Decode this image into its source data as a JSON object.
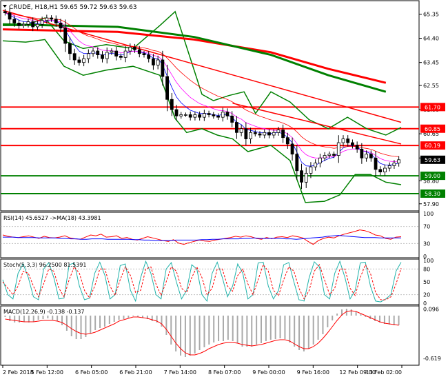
{
  "window": {
    "symbol_title": "CRUDE, H18,H1  59.65 59.72 59.63 59.63"
  },
  "chart_data": [
    {
      "type": "candlestick",
      "name": "main",
      "y_ticks": [
        "65.35",
        "64.40",
        "63.45",
        "62.55",
        "61.60",
        "60.65",
        "59.70",
        "58.80",
        "57.90"
      ],
      "y_tick_values": [
        65.35,
        64.4,
        63.45,
        62.55,
        61.6,
        60.65,
        59.7,
        58.8,
        57.9
      ],
      "ylim": [
        57.65,
        65.85
      ],
      "last_price": "59.63",
      "price_levels": [
        {
          "label": "61.70",
          "value": 61.7,
          "color": "#ff0000"
        },
        {
          "label": "60.85",
          "value": 60.85,
          "color": "#ff0000"
        },
        {
          "label": "60.19",
          "value": 60.19,
          "color": "#ff0000"
        },
        {
          "label": "59.00",
          "value": 59.0,
          "color": "#008000"
        },
        {
          "label": "58.30",
          "value": 58.3,
          "color": "#008000"
        }
      ],
      "closes": [
        65.4,
        65.15,
        65.0,
        64.9,
        64.95,
        65.05,
        64.85,
        64.95,
        65.1,
        65.2,
        65.15,
        65.0,
        64.8,
        64.2,
        63.8,
        63.55,
        63.45,
        63.6,
        63.8,
        63.9,
        63.75,
        63.6,
        63.85,
        63.9,
        63.7,
        63.65,
        63.9,
        64.05,
        63.95,
        63.8,
        63.75,
        63.6,
        63.35,
        63.55,
        62.9,
        62.0,
        61.6,
        61.35,
        61.4,
        61.4,
        61.3,
        61.4,
        61.3,
        61.45,
        61.4,
        61.35,
        61.3,
        61.5,
        61.35,
        61.1,
        60.7,
        60.85,
        60.45,
        60.7,
        60.65,
        60.6,
        60.7,
        60.6,
        60.7,
        60.8,
        60.5,
        60.25,
        59.85,
        59.2,
        58.75,
        59.1,
        59.35,
        59.5,
        59.7,
        59.8,
        59.85,
        59.8,
        60.3,
        60.45,
        60.3,
        60.2,
        60.05,
        59.7,
        59.85,
        59.7,
        59.25,
        59.15,
        59.3,
        59.4,
        59.5,
        59.63
      ],
      "trendlines": [
        {
          "from": [
            0,
            65.5
          ],
          "to": [
            104,
            61.1
          ],
          "color": "#ff0000"
        },
        {
          "from": [
            60,
            61.85
          ],
          "to": [
            104,
            60.25
          ],
          "color": "#ff0000"
        }
      ],
      "long_mas": [
        {
          "color": "#ff0000",
          "points": [
            [
              0,
              64.75
            ],
            [
              30,
              64.65
            ],
            [
              50,
              64.35
            ],
            [
              70,
              63.85
            ],
            [
              85,
              63.2
            ],
            [
              100,
              62.65
            ]
          ]
        },
        {
          "color": "#008000",
          "points": [
            [
              0,
              64.95
            ],
            [
              30,
              64.85
            ],
            [
              50,
              64.45
            ],
            [
              70,
              63.75
            ],
            [
              85,
              62.95
            ],
            [
              100,
              62.3
            ]
          ]
        }
      ],
      "bollinger": {
        "color": "#008000",
        "upper": [
          [
            0,
            64.9
          ],
          [
            6,
            64.9
          ],
          [
            11,
            65.2
          ],
          [
            16,
            64.3
          ],
          [
            21,
            64.0
          ],
          [
            27,
            64.15
          ],
          [
            34,
            64.0
          ],
          [
            41,
            64.9
          ],
          [
            45,
            65.45
          ],
          [
            49,
            63.6
          ],
          [
            52,
            62.2
          ],
          [
            55,
            61.95
          ],
          [
            59,
            62.15
          ],
          [
            63,
            62.3
          ],
          [
            66,
            61.45
          ],
          [
            70,
            62.3
          ],
          [
            75,
            61.9
          ],
          [
            80,
            61.2
          ],
          [
            85,
            60.85
          ],
          [
            90,
            61.3
          ],
          [
            95,
            60.85
          ],
          [
            100,
            60.6
          ],
          [
            104,
            60.9
          ]
        ],
        "lower": [
          [
            0,
            64.3
          ],
          [
            6,
            64.25
          ],
          [
            11,
            64.35
          ],
          [
            16,
            63.3
          ],
          [
            21,
            62.95
          ],
          [
            27,
            63.15
          ],
          [
            34,
            63.3
          ],
          [
            41,
            62.95
          ],
          [
            45,
            61.25
          ],
          [
            48,
            60.7
          ],
          [
            52,
            60.85
          ],
          [
            56,
            60.6
          ],
          [
            60,
            60.45
          ],
          [
            64,
            59.95
          ],
          [
            70,
            60.2
          ],
          [
            75,
            59.6
          ],
          [
            79,
            57.95
          ],
          [
            84,
            58.0
          ],
          [
            88,
            58.25
          ],
          [
            92,
            59.05
          ],
          [
            96,
            59.05
          ],
          [
            100,
            58.75
          ],
          [
            104,
            58.65
          ]
        ]
      }
    },
    {
      "type": "line",
      "name": "rsi",
      "label": "RSI(14) 45.6527  ->MA(18) 43.3981",
      "y_ticks": [
        "100",
        "70",
        "30",
        "0"
      ],
      "y_tick_values": [
        100,
        70,
        30,
        0
      ],
      "ylim": [
        0,
        100
      ],
      "series": [
        {
          "color": "#ff0000",
          "values": [
            50,
            47,
            45,
            44,
            46,
            48,
            45,
            42,
            47,
            44,
            43,
            45,
            48,
            43,
            41,
            40,
            45,
            50,
            48,
            52,
            45,
            46,
            48,
            42,
            44,
            40,
            38,
            42,
            46,
            43,
            40,
            37,
            35,
            39,
            31,
            28,
            32,
            35,
            38,
            36,
            35,
            38,
            40,
            42,
            44,
            47,
            45,
            48,
            46,
            42,
            40,
            44,
            41,
            45,
            46,
            44,
            48,
            46,
            43,
            35,
            28,
            37,
            42,
            45,
            43,
            48,
            52,
            55,
            58,
            62,
            60,
            56,
            50,
            48,
            42,
            40,
            45,
            46
          ]
        },
        {
          "color": "#0000ff",
          "values": [
            45,
            45,
            45,
            44,
            44,
            44,
            44,
            43,
            43,
            43,
            43,
            42,
            42,
            41,
            41,
            40,
            40,
            41,
            41,
            41,
            40,
            40,
            40,
            40,
            40,
            39,
            39,
            38,
            38,
            37,
            37,
            37,
            37,
            38,
            38,
            38,
            38,
            38,
            39,
            39,
            40,
            40,
            41,
            41,
            41,
            41,
            42,
            42,
            43,
            42,
            42,
            42,
            42,
            42,
            41,
            41,
            40,
            41,
            42,
            43,
            44,
            45,
            47,
            48,
            49,
            48,
            47,
            46,
            45,
            44,
            44,
            44,
            43,
            43,
            43,
            43,
            43
          ]
        }
      ]
    },
    {
      "type": "line",
      "name": "stoch",
      "label": "Stoch(5,3,3) 96.2500 81.5391",
      "y_ticks": [
        "100",
        "80",
        "50",
        "20",
        "0"
      ],
      "y_tick_values": [
        100,
        80,
        50,
        20,
        0
      ],
      "ylim": [
        0,
        100
      ],
      "series": [
        {
          "color": "#20b2aa",
          "values": [
            55,
            20,
            10,
            70,
            92,
            60,
            15,
            8,
            80,
            95,
            60,
            10,
            12,
            90,
            94,
            40,
            8,
            12,
            70,
            96,
            65,
            10,
            20,
            88,
            92,
            30,
            5,
            60,
            98,
            70,
            20,
            10,
            80,
            95,
            50,
            10,
            30,
            90,
            80,
            20,
            5,
            70,
            96,
            60,
            15,
            40,
            92,
            70,
            10,
            20,
            94,
            96,
            40,
            10,
            30,
            90,
            95,
            50,
            8,
            5,
            60,
            97,
            85,
            20,
            10,
            70,
            98,
            60,
            10,
            30,
            94,
            96,
            40,
            5,
            3,
            10,
            20,
            75,
            96
          ]
        },
        {
          "color": "#ff0000",
          "values": [
            50,
            35,
            20,
            40,
            75,
            70,
            40,
            15,
            45,
            80,
            75,
            35,
            15,
            55,
            85,
            70,
            30,
            12,
            40,
            80,
            80,
            40,
            18,
            55,
            85,
            65,
            25,
            30,
            80,
            85,
            45,
            18,
            50,
            85,
            75,
            35,
            25,
            60,
            85,
            60,
            20,
            35,
            80,
            80,
            40,
            28,
            65,
            80,
            45,
            20,
            55,
            90,
            75,
            30,
            18,
            55,
            85,
            75,
            35,
            10,
            30,
            75,
            90,
            55,
            20,
            35,
            80,
            80,
            35,
            18,
            60,
            90,
            70,
            25,
            8,
            8,
            15,
            45,
            82
          ]
        }
      ]
    },
    {
      "type": "bar",
      "name": "macd",
      "label": "MACD(12,26,9) -0.138 -0.137",
      "y_ticks": [
        "0.096",
        "-0.619"
      ],
      "y_tick_values": [
        0.096,
        -0.619
      ],
      "ylim": [
        -0.7,
        0.12
      ],
      "histogram": [
        -0.02,
        -0.08,
        -0.1,
        -0.1,
        -0.09,
        -0.1,
        -0.09,
        -0.06,
        -0.05,
        -0.04,
        -0.06,
        -0.08,
        -0.14,
        -0.22,
        -0.3,
        -0.34,
        -0.34,
        -0.31,
        -0.26,
        -0.21,
        -0.18,
        -0.16,
        -0.12,
        -0.09,
        -0.06,
        -0.05,
        -0.03,
        -0.01,
        -0.02,
        -0.03,
        -0.05,
        -0.08,
        -0.1,
        -0.16,
        -0.28,
        -0.42,
        -0.52,
        -0.58,
        -0.6,
        -0.58,
        -0.55,
        -0.5,
        -0.46,
        -0.42,
        -0.39,
        -0.37,
        -0.37,
        -0.35,
        -0.37,
        -0.4,
        -0.45,
        -0.45,
        -0.45,
        -0.42,
        -0.4,
        -0.37,
        -0.35,
        -0.34,
        -0.33,
        -0.34,
        -0.39,
        -0.45,
        -0.5,
        -0.52,
        -0.48,
        -0.42,
        -0.35,
        -0.27,
        -0.17,
        -0.07,
        0.03,
        0.09,
        0.1,
        0.09,
        0.06,
        0.02,
        -0.02,
        -0.05,
        -0.08,
        -0.1,
        -0.12,
        -0.13,
        -0.14,
        -0.14
      ],
      "signal": [
        -0.05,
        -0.06,
        -0.07,
        -0.08,
        -0.09,
        -0.09,
        -0.09,
        -0.08,
        -0.07,
        -0.07,
        -0.07,
        -0.08,
        -0.1,
        -0.14,
        -0.19,
        -0.23,
        -0.26,
        -0.27,
        -0.26,
        -0.24,
        -0.21,
        -0.18,
        -0.15,
        -0.12,
        -0.08,
        -0.06,
        -0.04,
        -0.02,
        -0.02,
        -0.03,
        -0.04,
        -0.06,
        -0.08,
        -0.12,
        -0.2,
        -0.3,
        -0.4,
        -0.48,
        -0.54,
        -0.57,
        -0.57,
        -0.55,
        -0.52,
        -0.48,
        -0.45,
        -0.42,
        -0.4,
        -0.39,
        -0.39,
        -0.4,
        -0.42,
        -0.43,
        -0.44,
        -0.43,
        -0.42,
        -0.4,
        -0.38,
        -0.36,
        -0.35,
        -0.35,
        -0.37,
        -0.41,
        -0.45,
        -0.48,
        -0.48,
        -0.45,
        -0.4,
        -0.33,
        -0.25,
        -0.16,
        -0.07,
        0.01,
        0.06,
        0.07,
        0.06,
        0.03,
        0.0,
        -0.03,
        -0.06,
        -0.09,
        -0.11,
        -0.12,
        -0.13,
        -0.14
      ]
    }
  ],
  "x_axis": {
    "labels": [
      "2 Feb 2018",
      "5 Feb 12:00",
      "6 Feb 05:00",
      "6 Feb 21:00",
      "7 Feb 14:00",
      "8 Feb 07:00",
      "9 Feb 00:00",
      "9 Feb 16:00",
      "12 Feb 09:00",
      "13 Feb 02:00"
    ]
  },
  "rsi_ma_label": "->MA(18)"
}
